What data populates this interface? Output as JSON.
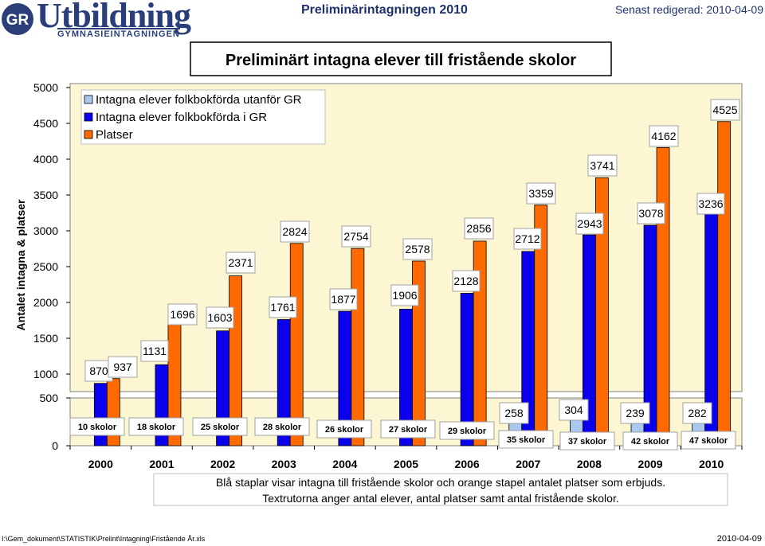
{
  "header": {
    "logo_gr": "GR",
    "logo_title": "Utbildning",
    "logo_subtitle": "GYMNASIEINTAGNINGEN",
    "center_title": "Preliminärintagningen 2010",
    "right_text": "Senast redigerad: 2010-04-09"
  },
  "colors": {
    "plot_bg": "#fdf6d3",
    "light_blue": "#a9c9ef",
    "blue": "#0b00ee",
    "orange": "#ff6a00",
    "header_blue": "#1f3270"
  },
  "chart_data": {
    "type": "bar",
    "title": "Preliminärt intagna elever till fristående skolor",
    "ylabel": "Antalet intagna & platser",
    "xlabel": "",
    "categories": [
      "2000",
      "2001",
      "2002",
      "2003",
      "2004",
      "2005",
      "2006",
      "2007",
      "2008",
      "2009",
      "2010"
    ],
    "ylim": [
      0,
      5000
    ],
    "yticks": [
      "0",
      "500",
      "1000",
      "1500",
      "2000",
      "2500",
      "3000",
      "3500",
      "4000",
      "4500",
      "5000"
    ],
    "y_axis_break": [
      500,
      1000
    ],
    "grid": false,
    "legend_position": "top-left",
    "series": [
      {
        "name": "Intagna elever folkbokförda utanför GR",
        "values": [
          null,
          null,
          null,
          null,
          null,
          null,
          null,
          258,
          304,
          239,
          282
        ]
      },
      {
        "name": "Intagna elever folkbokförda i GR",
        "values": [
          870,
          1131,
          1603,
          1761,
          1877,
          1906,
          2128,
          2712,
          2943,
          3078,
          3236
        ]
      },
      {
        "name": "Platser",
        "values": [
          937,
          1696,
          2371,
          2824,
          2754,
          2578,
          2856,
          3359,
          3741,
          4162,
          4525
        ]
      }
    ],
    "gr_labels": [
      "870",
      "1131",
      "1603",
      "1761",
      "1877",
      "1906",
      "2128",
      "2712",
      "2943",
      "3078",
      "3236"
    ],
    "platser_labels": [
      "937",
      "1696",
      "2371",
      "2824",
      "2754",
      "2578",
      "2856",
      "3359",
      "3741",
      "4162",
      "4525"
    ],
    "outside_labels": [
      "",
      "",
      "",
      "",
      "",
      "",
      "",
      "258",
      "304",
      "239",
      "282"
    ],
    "skolor_labels": [
      "10 skolor",
      "18 skolor",
      "25 skolor",
      "28 skolor",
      "26 skolor",
      "27 skolor",
      "29 skolor",
      "35 skolor",
      "37 skolor",
      "42 skolor",
      "47 skolor"
    ],
    "note_line1": "Blå staplar visar intagna till fristående skolor och orange stapel antalet platser som erbjuds.",
    "note_line2": "Textrutorna anger antal elever, antal platser samt antal fristående skolor."
  },
  "footer": {
    "path": "I:\\Gem_dokument\\STATISTIK\\Prelint\\Intagning\\Fristående År.xls",
    "date": "2010-04-09"
  }
}
